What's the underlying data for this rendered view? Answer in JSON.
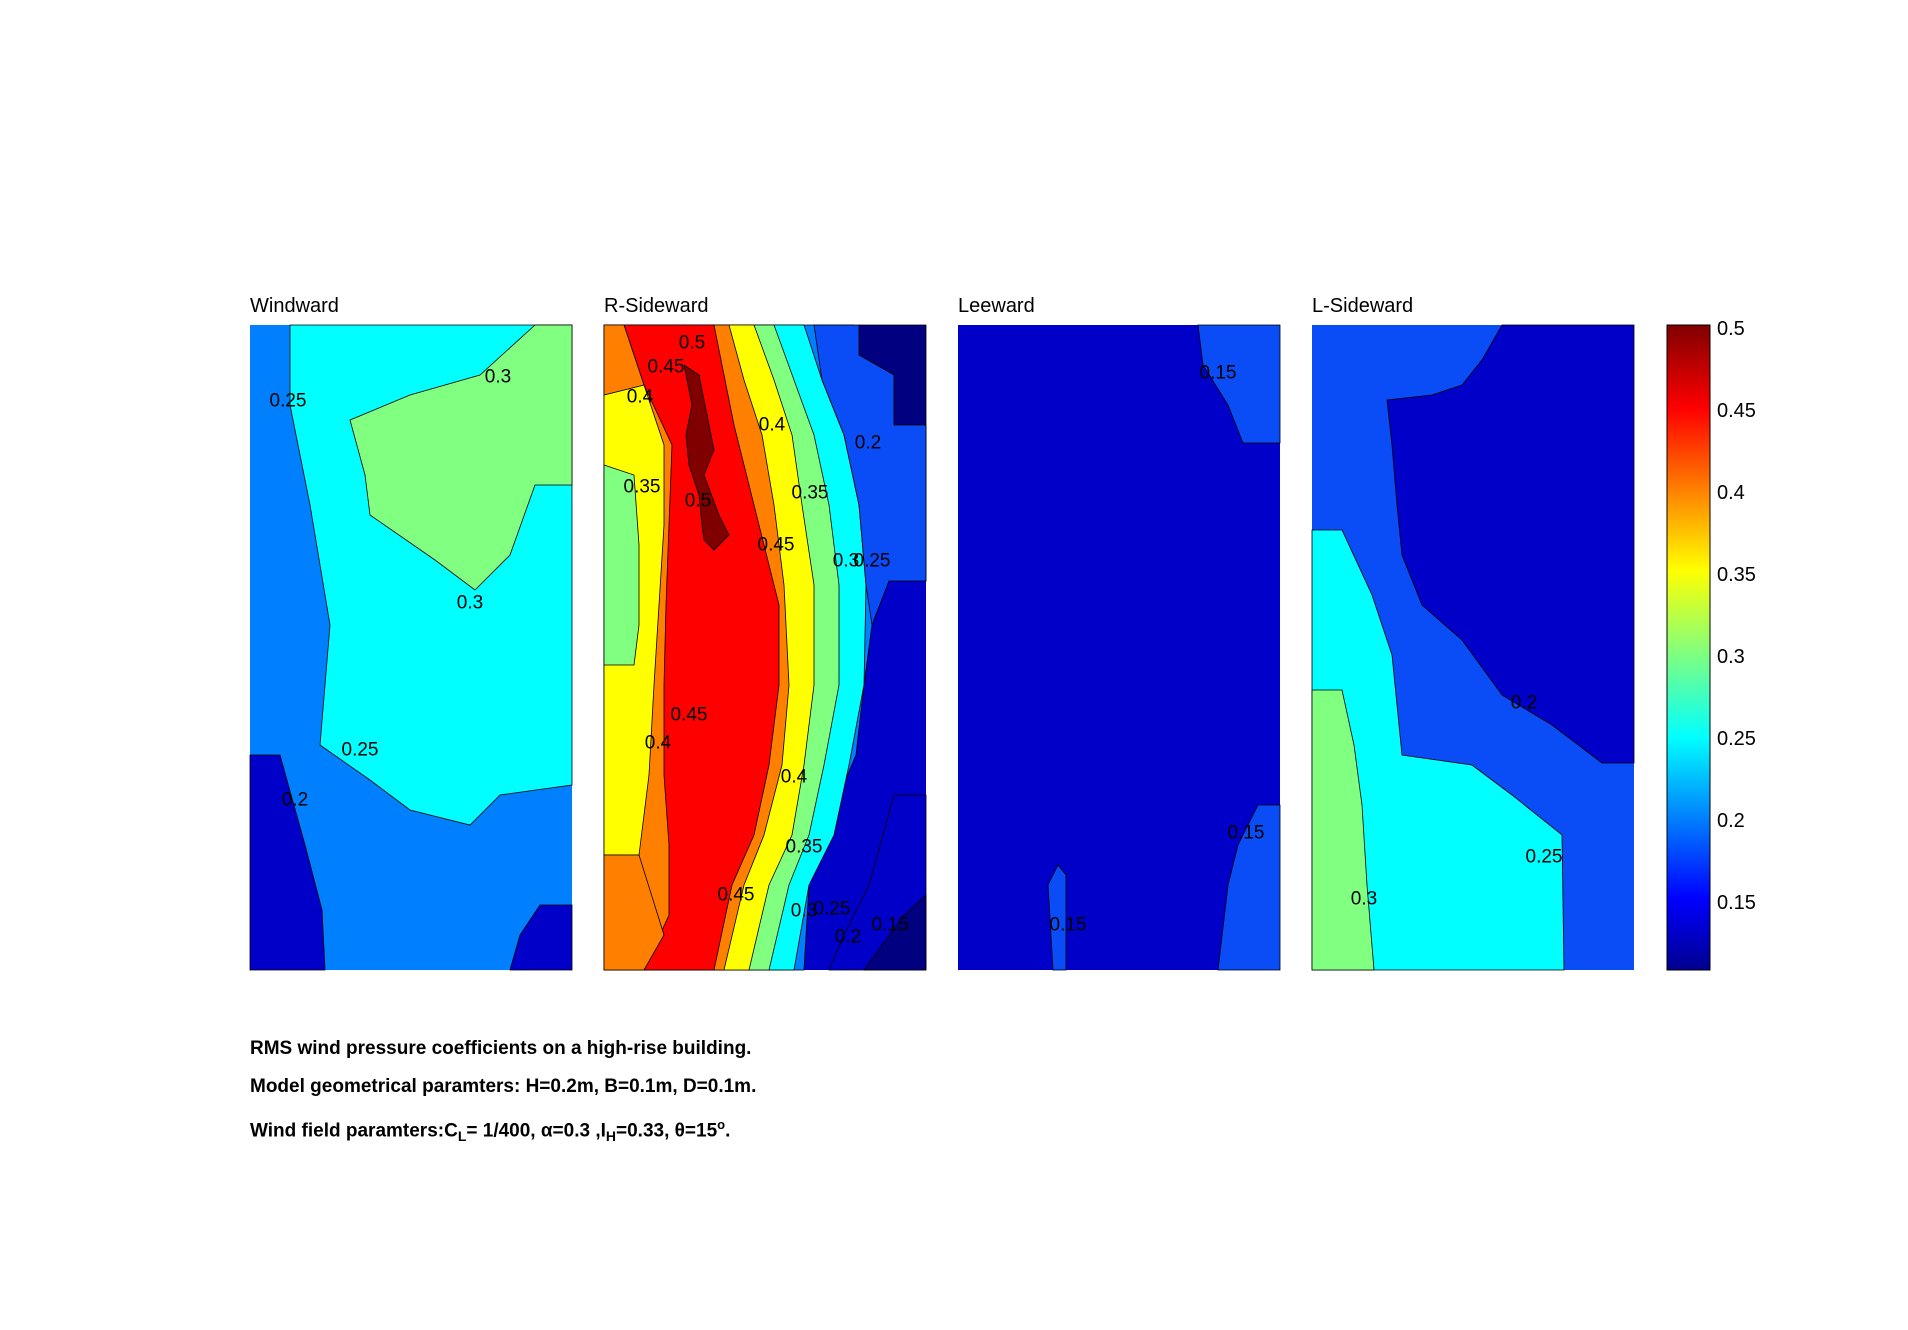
{
  "chart_data": [
    {
      "type": "heatmap",
      "title": "Windward",
      "clim": [
        0.11,
        0.5
      ],
      "regions_levels": [
        0.25,
        0.3,
        0.2,
        0.15
      ],
      "contour_labels": [
        "0.3",
        "0.25",
        "0.3",
        "0.25",
        "0.2"
      ]
    },
    {
      "type": "heatmap",
      "title": "R-Sideward",
      "clim": [
        0.11,
        0.5
      ],
      "contour_labels": [
        "0.5",
        "0.45",
        "0.4",
        "0.35",
        "0.5",
        "0.4",
        "0.2",
        "0.35",
        "0.45",
        "0.3",
        "0.25",
        "0.45",
        "0.4",
        "0.4",
        "0.35",
        "0.45",
        "0.3",
        "0.25",
        "0.2",
        "0.15"
      ]
    },
    {
      "type": "heatmap",
      "title": "Leeward",
      "clim": [
        0.11,
        0.5
      ],
      "contour_labels": [
        "0.15",
        "0.15",
        "0.15"
      ]
    },
    {
      "type": "heatmap",
      "title": "L-Sideward",
      "clim": [
        0.11,
        0.5
      ],
      "contour_labels": [
        "0.2",
        "0.25",
        "0.3"
      ]
    }
  ],
  "colorbar": {
    "colormap": "jet",
    "range": [
      0.11,
      0.5
    ],
    "ticks": [
      "0.5",
      "0.45",
      "0.4",
      "0.35",
      "0.3",
      "0.25",
      "0.2",
      "0.15"
    ]
  },
  "colors": {
    "c_015": "#0000c8",
    "c_020": "#0a4cf5",
    "c_025": "#0080ff",
    "c_030": "#00ffff",
    "c_035": "#80ff80",
    "c_040": "#ffff00",
    "c_045": "#ff8000",
    "c_050": "#ff0000",
    "c_055": "#800000",
    "c_dark": "#000080"
  },
  "caption": {
    "line1": "RMS wind pressure coefficients on a high-rise building.",
    "line2": "Model geometrical paramters: H=0.2m, B=0.1m, D=0.1m.",
    "line3_a": "Wind field paramters:C",
    "line3_sub1": "L",
    "line3_b": "= 1/400, α=0.3 ,I",
    "line3_sub2": "H",
    "line3_c": "=0.33, θ=15",
    "line3_sup": "o",
    "line3_d": "."
  }
}
